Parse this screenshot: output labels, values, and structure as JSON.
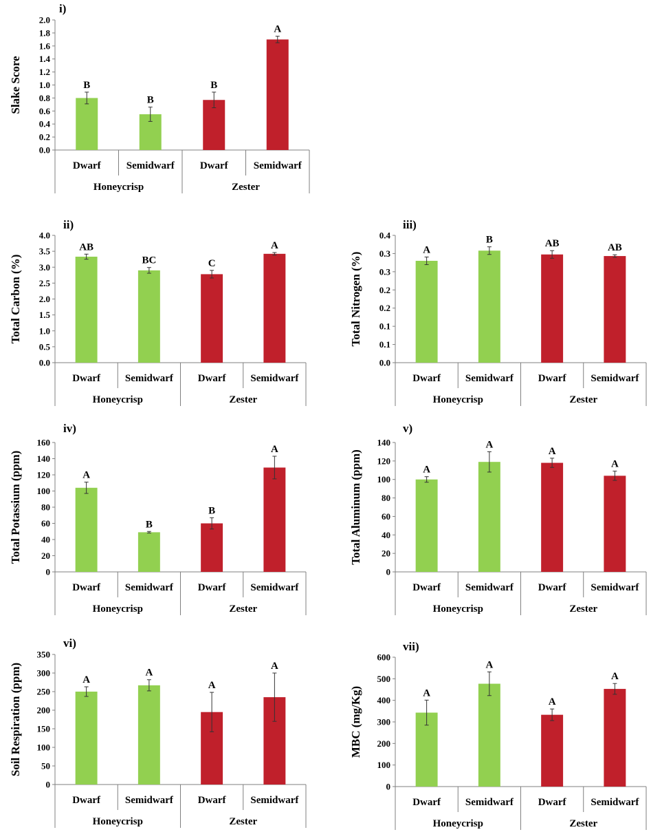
{
  "colors": {
    "honeycrisp": "#92d050",
    "zester": "#c0202b",
    "axis": "#7f7f7f",
    "error_bar": "#333333"
  },
  "chart_data": [
    {
      "type": "bar",
      "panel": "i)",
      "ylabel": "Slake Score",
      "ylim": [
        0,
        2.0
      ],
      "yticks": [
        "0.0",
        "0.2",
        "0.4",
        "0.6",
        "0.8",
        "1.0",
        "1.2",
        "1.4",
        "1.6",
        "1.8",
        "2.0"
      ],
      "categories": [
        "Dwarf",
        "Semidwarf",
        "Dwarf",
        "Semidwarf"
      ],
      "groups": [
        "Honeycrisp",
        "Zester"
      ],
      "values": [
        0.8,
        0.55,
        0.77,
        1.7
      ],
      "errors": [
        0.09,
        0.11,
        0.12,
        0.05
      ],
      "significance": [
        "B",
        "B",
        "B",
        "A"
      ]
    },
    {
      "type": "bar",
      "panel": "ii)",
      "ylabel": "Total Carbon (%)",
      "ylim": [
        0,
        4.0
      ],
      "yticks": [
        "0.0",
        "0.5",
        "1.0",
        "1.5",
        "2.0",
        "2.5",
        "3.0",
        "3.5",
        "4.0"
      ],
      "categories": [
        "Dwarf",
        "Semidwarf",
        "Dwarf",
        "Semidwarf"
      ],
      "groups": [
        "Honeycrisp",
        "Zester"
      ],
      "values": [
        3.33,
        2.9,
        2.78,
        3.42
      ],
      "errors": [
        0.08,
        0.09,
        0.12,
        0.04
      ],
      "significance": [
        "AB",
        "BC",
        "C",
        "A"
      ]
    },
    {
      "type": "bar",
      "panel": "iii)",
      "ylabel": "Total Nitrogen (%)",
      "ylim": [
        0,
        0.4
      ],
      "yticks": [
        "0.0",
        "0.1",
        "0.1",
        "0.2",
        "0.2",
        "0.3",
        "0.3",
        "0.4"
      ],
      "categories": [
        "Dwarf",
        "Semidwarf",
        "Dwarf",
        "Semidwarf"
      ],
      "groups": [
        "Honeycrisp",
        "Zester"
      ],
      "values": [
        0.32,
        0.352,
        0.34,
        0.335
      ],
      "errors": [
        0.012,
        0.012,
        0.012,
        0.004
      ],
      "significance": [
        "A",
        "B",
        "AB",
        "AB"
      ],
      "note": "tick labels rounded as shown; scale 0.05 per step"
    },
    {
      "type": "bar",
      "panel": "iv)",
      "ylabel": "Total Potassium (ppm)",
      "ylim": [
        0,
        160
      ],
      "yticks": [
        "0",
        "20",
        "40",
        "60",
        "80",
        "100",
        "120",
        "140",
        "160"
      ],
      "categories": [
        "Dwarf",
        "Semidwarf",
        "Dwarf",
        "Semidwarf"
      ],
      "groups": [
        "Honeycrisp",
        "Zester"
      ],
      "values": [
        104,
        49,
        60,
        129
      ],
      "errors": [
        7,
        1,
        7,
        14
      ],
      "significance": [
        "A",
        "B",
        "B",
        "A"
      ]
    },
    {
      "type": "bar",
      "panel": "v)",
      "ylabel": "Total Aluminum (ppm)",
      "ylim": [
        0,
        140
      ],
      "yticks": [
        "0",
        "20",
        "40",
        "60",
        "80",
        "100",
        "120",
        "140"
      ],
      "categories": [
        "Dwarf",
        "Semidwarf",
        "Dwarf",
        "Semidwarf"
      ],
      "groups": [
        "Honeycrisp",
        "Zester"
      ],
      "values": [
        100,
        119,
        118,
        104
      ],
      "errors": [
        3,
        11,
        5,
        5
      ],
      "significance": [
        "A",
        "A",
        "A",
        "A"
      ]
    },
    {
      "type": "bar",
      "panel": "vi)",
      "ylabel": "Soil Respiration (ppm)",
      "ylim": [
        0,
        350
      ],
      "yticks": [
        "0",
        "50",
        "100",
        "150",
        "200",
        "250",
        "300",
        "350"
      ],
      "categories": [
        "Dwarf",
        "Semidwarf",
        "Dwarf",
        "Semidwarf"
      ],
      "groups": [
        "Honeycrisp",
        "Zester"
      ],
      "values": [
        250,
        267,
        195,
        235
      ],
      "errors": [
        13,
        15,
        53,
        65
      ],
      "significance": [
        "A",
        "A",
        "A",
        "A"
      ]
    },
    {
      "type": "bar",
      "panel": "vii)",
      "ylabel": "MBC (mg/Kg)",
      "ylim": [
        0,
        600
      ],
      "yticks": [
        "0",
        "100",
        "200",
        "300",
        "400",
        "500",
        "600"
      ],
      "categories": [
        "Dwarf",
        "Semidwarf",
        "Dwarf",
        "Semidwarf"
      ],
      "groups": [
        "Honeycrisp",
        "Zester"
      ],
      "values": [
        343,
        477,
        333,
        453
      ],
      "errors": [
        58,
        55,
        27,
        25
      ],
      "significance": [
        "A",
        "A",
        "A",
        "A"
      ]
    }
  ]
}
